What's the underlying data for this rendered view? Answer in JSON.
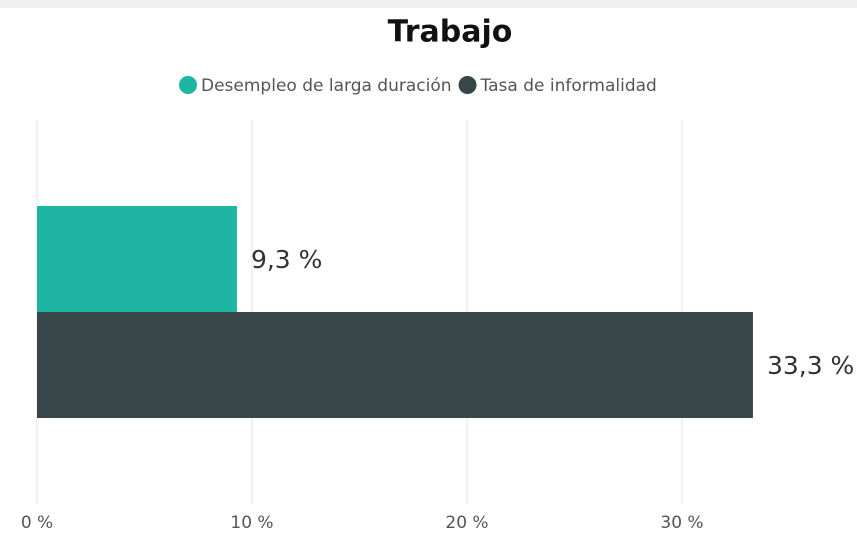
{
  "chart_data": {
    "type": "hbar",
    "title": "Trabajo",
    "categories": [
      null
    ],
    "series": [
      {
        "name": "Desempleo de larga duración",
        "color": "#1fb5a3",
        "values": [
          9.3
        ],
        "value_labels": [
          "9,3 %"
        ]
      },
      {
        "name": "Tasa de informalidad",
        "color": "#374649",
        "values": [
          33.3
        ],
        "value_labels": [
          "33,3 %"
        ]
      }
    ],
    "xlim": [
      0,
      38
    ],
    "xticks": [
      {
        "value": 0,
        "label": "0 %"
      },
      {
        "value": 10,
        "label": "10 %"
      },
      {
        "value": 20,
        "label": "20 %"
      },
      {
        "value": 30,
        "label": "30 %"
      }
    ],
    "grid": true,
    "legend": "top"
  }
}
